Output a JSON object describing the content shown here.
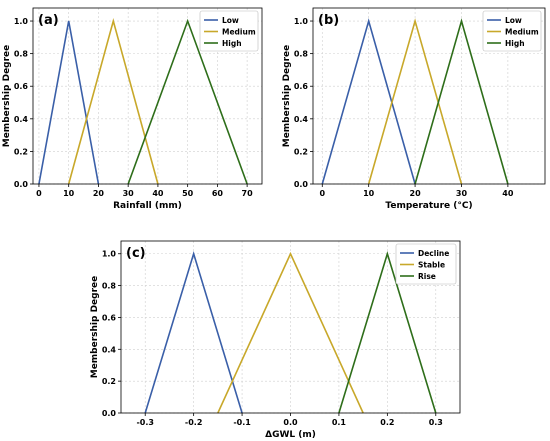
{
  "chart_data": [
    {
      "type": "line",
      "panel_label": "(a)",
      "xlabel": "Rainfall (mm)",
      "ylabel": "Membership Degree",
      "xlim": [
        -2,
        75
      ],
      "ylim": [
        0,
        1.08
      ],
      "xticks": [
        "0",
        "10",
        "20",
        "30",
        "40",
        "50",
        "60",
        "70"
      ],
      "xtick_values": [
        0,
        10,
        20,
        30,
        40,
        50,
        60,
        70
      ],
      "yticks": [
        "0.0",
        "0.2",
        "0.4",
        "0.6",
        "0.8",
        "1.0"
      ],
      "ytick_values": [
        0,
        0.2,
        0.4,
        0.6,
        0.8,
        1.0
      ],
      "grid": true,
      "legend_position": "top-right",
      "series": [
        {
          "name": "Low",
          "color": "#3a5fa8",
          "x": [
            0,
            10,
            20
          ],
          "y": [
            0,
            1,
            0
          ]
        },
        {
          "name": "Medium",
          "color": "#c8a82a",
          "x": [
            10,
            25,
            40
          ],
          "y": [
            0,
            1,
            0
          ]
        },
        {
          "name": "High",
          "color": "#2e6e1a",
          "x": [
            30,
            50,
            70
          ],
          "y": [
            0,
            1,
            0
          ]
        }
      ]
    },
    {
      "type": "line",
      "panel_label": "(b)",
      "xlabel": "Temperature (°C)",
      "ylabel": "Membership Degree",
      "xlim": [
        -2,
        48
      ],
      "ylim": [
        0,
        1.08
      ],
      "xticks": [
        "0",
        "10",
        "20",
        "30",
        "40"
      ],
      "xtick_values": [
        0,
        10,
        20,
        30,
        40
      ],
      "yticks": [
        "0.0",
        "0.2",
        "0.4",
        "0.6",
        "0.8",
        "1.0"
      ],
      "ytick_values": [
        0,
        0.2,
        0.4,
        0.6,
        0.8,
        1.0
      ],
      "grid": true,
      "legend_position": "top-right",
      "series": [
        {
          "name": "Low",
          "color": "#3a5fa8",
          "x": [
            0,
            10,
            20
          ],
          "y": [
            0,
            1,
            0
          ]
        },
        {
          "name": "Medium",
          "color": "#c8a82a",
          "x": [
            10,
            20,
            30
          ],
          "y": [
            0,
            1,
            0
          ]
        },
        {
          "name": "High",
          "color": "#2e6e1a",
          "x": [
            20,
            30,
            40
          ],
          "y": [
            0,
            1,
            0
          ]
        }
      ]
    },
    {
      "type": "line",
      "panel_label": "(c)",
      "xlabel": "ΔGWL (m)",
      "ylabel": "Membership Degree",
      "xlim": [
        -0.35,
        0.35
      ],
      "ylim": [
        0,
        1.08
      ],
      "xticks": [
        "-0.3",
        "-0.2",
        "-0.1",
        "0.0",
        "0.1",
        "0.2",
        "0.3"
      ],
      "xtick_values": [
        -0.3,
        -0.2,
        -0.1,
        0.0,
        0.1,
        0.2,
        0.3
      ],
      "yticks": [
        "0.0",
        "0.2",
        "0.4",
        "0.6",
        "0.8",
        "1.0"
      ],
      "ytick_values": [
        0,
        0.2,
        0.4,
        0.6,
        0.8,
        1.0
      ],
      "grid": true,
      "legend_position": "top-right",
      "series": [
        {
          "name": "Decline",
          "color": "#3a5fa8",
          "x": [
            -0.3,
            -0.2,
            -0.1
          ],
          "y": [
            0,
            1,
            0
          ]
        },
        {
          "name": "Stable",
          "color": "#c8a82a",
          "x": [
            -0.15,
            0.0,
            0.15
          ],
          "y": [
            0,
            1,
            0
          ]
        },
        {
          "name": "Rise",
          "color": "#2e6e1a",
          "x": [
            0.1,
            0.2,
            0.3
          ],
          "y": [
            0,
            1,
            0
          ]
        }
      ]
    }
  ]
}
